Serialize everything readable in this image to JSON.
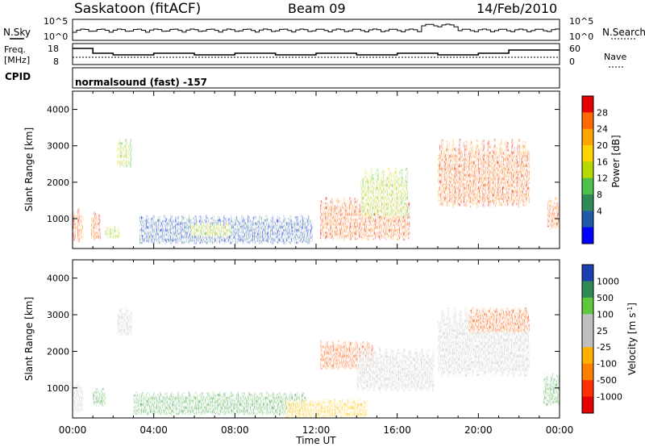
{
  "header": {
    "radar": "Saskatoon (fitACF)",
    "beam": "Beam 09",
    "date": "14/Feb/2010"
  },
  "strip1": {
    "left_label": "N.Sky",
    "y_top": "10^5",
    "y_bottom": "10^0",
    "right_label": "N.Search"
  },
  "strip2": {
    "left_label_1": "Freq.",
    "left_label_2": "[MHz]",
    "right_label": "Nave",
    "left_ticks": [
      "18",
      "8"
    ],
    "right_ticks": [
      "60",
      "0"
    ]
  },
  "cpid": {
    "label": "CPID",
    "value": "normalsound (fast) -157"
  },
  "chart_data": [
    {
      "type": "heatmap",
      "name": "power",
      "ylabel": "Slant Range [km]",
      "ylim": [
        180,
        4500
      ],
      "yticks": [
        "1000",
        "2000",
        "3000",
        "4000"
      ],
      "xlim": [
        0,
        24
      ],
      "colorbar_label": "Power [dB]",
      "colorbar_ticks": [
        "28",
        "24",
        "20",
        "16",
        "12",
        "8",
        "4"
      ],
      "colorbar_colors": [
        "#e50000",
        "#ff6a00",
        "#ffa500",
        "#ffd400",
        "#b7d900",
        "#4cc24c",
        "#2e8b57",
        "#1e5aa8",
        "#0000ff"
      ],
      "regions": [
        {
          "t": [
            0.0,
            0.5
          ],
          "r": [
            350,
            1300
          ],
          "level": "high"
        },
        {
          "t": [
            0.9,
            1.35
          ],
          "r": [
            400,
            1200
          ],
          "level": "high"
        },
        {
          "t": [
            1.6,
            2.3
          ],
          "r": [
            450,
            800
          ],
          "level": "mid"
        },
        {
          "t": [
            2.2,
            2.9
          ],
          "r": [
            2400,
            3200
          ],
          "level": "mid"
        },
        {
          "t": [
            3.3,
            11.8
          ],
          "r": [
            300,
            1100
          ],
          "level": "low"
        },
        {
          "t": [
            5.8,
            7.8
          ],
          "r": [
            500,
            900
          ],
          "level": "mid"
        },
        {
          "t": [
            12.2,
            16.6
          ],
          "r": [
            400,
            1600
          ],
          "level": "high"
        },
        {
          "t": [
            14.2,
            16.5
          ],
          "r": [
            1000,
            2400
          ],
          "level": "mid"
        },
        {
          "t": [
            18.0,
            22.5
          ],
          "r": [
            1300,
            3200
          ],
          "level": "high"
        },
        {
          "t": [
            23.4,
            24.0
          ],
          "r": [
            700,
            1600
          ],
          "level": "high"
        }
      ]
    },
    {
      "type": "heatmap",
      "name": "velocity",
      "ylabel": "Slant Range [km]",
      "ylim": [
        180,
        4500
      ],
      "yticks": [
        "1000",
        "2000",
        "3000",
        "4000"
      ],
      "xlim": [
        0,
        24
      ],
      "xticks": [
        "00:00",
        "04:00",
        "08:00",
        "12:00",
        "16:00",
        "20:00",
        "00:00"
      ],
      "xlabel": "Time UT",
      "colorbar_label": "Velocity [m s-1]",
      "colorbar_ticks": [
        "1000",
        "500",
        "100",
        "25",
        "-25",
        "-100",
        "-500",
        "-1000"
      ],
      "colorbar_colors": [
        "#1a3fb0",
        "#2e8b57",
        "#5fc73c",
        "#bfbfbf",
        "#bfbfbf",
        "#ffb000",
        "#ff7f00",
        "#ff3000",
        "#e50000"
      ],
      "regions": [
        {
          "t": [
            0.0,
            0.5
          ],
          "r": [
            300,
            1200
          ],
          "level": "-25..25"
        },
        {
          "t": [
            1.0,
            1.6
          ],
          "r": [
            500,
            1000
          ],
          "level": "100"
        },
        {
          "t": [
            2.2,
            2.9
          ],
          "r": [
            2400,
            3200
          ],
          "level": "-25..25"
        },
        {
          "t": [
            3.0,
            11.5
          ],
          "r": [
            250,
            900
          ],
          "level": "100"
        },
        {
          "t": [
            10.5,
            14.5
          ],
          "r": [
            180,
            700
          ],
          "level": "-100"
        },
        {
          "t": [
            12.2,
            14.8
          ],
          "r": [
            1500,
            2300
          ],
          "level": "-500"
        },
        {
          "t": [
            14.0,
            17.8
          ],
          "r": [
            900,
            2100
          ],
          "level": "-25..25"
        },
        {
          "t": [
            18.0,
            22.5
          ],
          "r": [
            1300,
            3200
          ],
          "level": "-25..25"
        },
        {
          "t": [
            19.5,
            22.5
          ],
          "r": [
            2500,
            3200
          ],
          "level": "-500"
        },
        {
          "t": [
            23.2,
            24.0
          ],
          "r": [
            500,
            1400
          ],
          "level": "100"
        }
      ]
    }
  ]
}
